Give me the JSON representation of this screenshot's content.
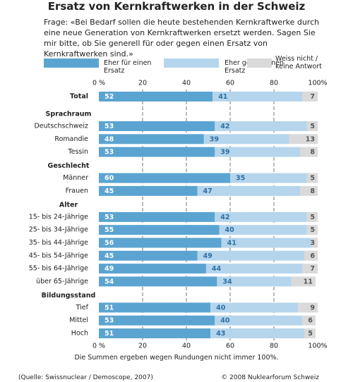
{
  "chart_data": {
    "type": "stacked-bar-horizontal",
    "title": "Ersatz von Kernkraftwerken in der Schweiz",
    "subtitle": "Frage: «Bei Bedarf sollen die heute bestehenden Kernkraftwerke durch eine neue Generation von Kernkraftwerken ersetzt werden. Sagen Sie mir bitte, ob Sie generell für oder gegen einen Ersatz von Kernkraftwerken sind.»",
    "categories": [
      "Total",
      "Sprachraum",
      "Deutschschweiz",
      "Romandie",
      "Tessin",
      "Geschlecht",
      "Männer",
      "Frauen",
      "Alter",
      "15- bis 24-Jährige",
      "25- bis 34-Jährige",
      "35- bis 44-Jährige",
      "45- bis 54-Jährige",
      "55- bis 64-Jährige",
      "über 65-Jährige",
      "Bildungsstand",
      "Tief",
      "Mittel",
      "Hoch"
    ],
    "series": [
      {
        "name": "Eher für einen Ersatz",
        "color": "#5ba4d1",
        "values": [
          52,
          null,
          53,
          48,
          53,
          null,
          60,
          45,
          null,
          53,
          55,
          56,
          45,
          49,
          54,
          null,
          51,
          53,
          51
        ]
      },
      {
        "name": "Eher gegen einen Ersatz",
        "color": "#b5d5ec",
        "values": [
          41,
          null,
          42,
          39,
          39,
          null,
          35,
          47,
          null,
          42,
          40,
          41,
          49,
          44,
          34,
          null,
          40,
          40,
          43
        ]
      },
      {
        "name": "Weiss nicht / keine Antwort",
        "color": "#dadada",
        "values": [
          7,
          null,
          5,
          13,
          8,
          null,
          5,
          8,
          null,
          5,
          5,
          3,
          6,
          7,
          11,
          null,
          9,
          6,
          5
        ]
      }
    ],
    "xlim": [
      0,
      100
    ],
    "xticks": [
      {
        "value": 0,
        "label": "0 %"
      },
      20,
      40,
      60,
      80,
      {
        "value": 100,
        "label": "100%"
      }
    ],
    "grid": true,
    "footnote": "Die Summen ergeben wegen Rundungen nicht immer 100%.",
    "source": "(Quelle: Swissnuclear / Demoscope, 2007)",
    "copyright": "© 2008 Nuklearforum Schweiz"
  }
}
